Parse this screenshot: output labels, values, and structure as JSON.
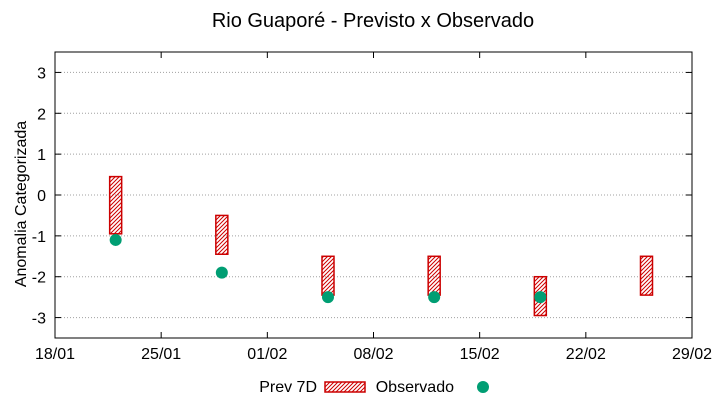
{
  "chart_data": {
    "type": "range_bar_scatter",
    "title": "Rio Guaporé - Previsto x Observado",
    "xlabel": "",
    "ylabel": "Anomalia Categorizada",
    "ylim": [
      -3.5,
      3.5
    ],
    "yticks": [
      3,
      2,
      1,
      0,
      -1,
      -2,
      -3
    ],
    "xlim": [
      "18/01",
      "29/02"
    ],
    "xticks": [
      "18/01",
      "25/01",
      "01/02",
      "08/02",
      "15/02",
      "22/02",
      "29/02"
    ],
    "grid": "horizontal-dotted",
    "legend_position": "bottom",
    "series": [
      {
        "name": "Prev 7D",
        "kind": "range",
        "color": "#cc0000",
        "points": [
          {
            "x": "22/01",
            "low": -0.95,
            "high": 0.45
          },
          {
            "x": "29/01",
            "low": -1.45,
            "high": -0.5
          },
          {
            "x": "05/02",
            "low": -2.45,
            "high": -1.5
          },
          {
            "x": "12/02",
            "low": -2.45,
            "high": -1.5
          },
          {
            "x": "19/02",
            "low": -2.95,
            "high": -2.0
          },
          {
            "x": "26/02",
            "low": -2.45,
            "high": -1.5
          }
        ]
      },
      {
        "name": "Observado",
        "kind": "point",
        "color": "#009e73",
        "points": [
          {
            "x": "22/01",
            "y": -1.1
          },
          {
            "x": "29/01",
            "y": -1.9
          },
          {
            "x": "05/02",
            "y": -2.5
          },
          {
            "x": "12/02",
            "y": -2.5
          },
          {
            "x": "19/02",
            "y": -2.5
          }
        ]
      }
    ]
  }
}
